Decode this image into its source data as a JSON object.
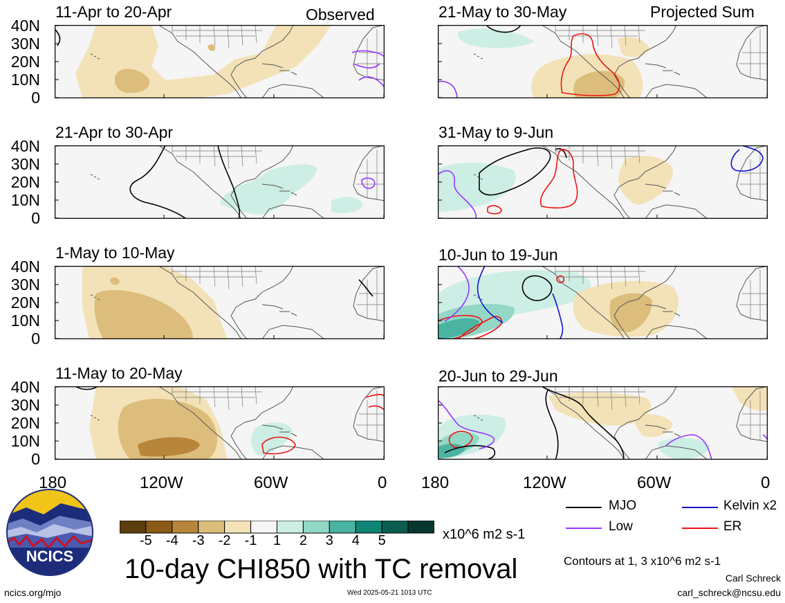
{
  "map_data": {
    "type": "multi-panel tropical map",
    "y_axis_ticks": [
      "40N",
      "30N",
      "20N",
      "10N",
      "0"
    ],
    "x_axis_ticks": [
      "180",
      "120W",
      "60W",
      "0"
    ],
    "columns": [
      {
        "label": "Observed",
        "panels": [
          {
            "title": "11-Apr to 20-Apr"
          },
          {
            "title": "21-Apr to 30-Apr"
          },
          {
            "title": "1-May to 10-May"
          },
          {
            "title": "11-May to 20-May"
          }
        ]
      },
      {
        "label": "Projected Sum",
        "panels": [
          {
            "title": "21-May to 30-May"
          },
          {
            "title": "31-May to 9-Jun"
          },
          {
            "title": "10-Jun to 19-Jun"
          },
          {
            "title": "20-Jun to 29-Jun"
          }
        ]
      }
    ]
  },
  "colorbar": {
    "labels": [
      "-5",
      "-4",
      "-3",
      "-2",
      "-1",
      "1",
      "2",
      "3",
      "4",
      "5"
    ],
    "colors": [
      "#5c3d0d",
      "#8a5a16",
      "#b8863a",
      "#dcbd7c",
      "#f3e2b8",
      "#f5f5f5",
      "#cdeee5",
      "#93d7c7",
      "#4bb3a1",
      "#108576",
      "#0a5d4f",
      "#06382f"
    ],
    "units": "x10^6 m2 s-1"
  },
  "legend": [
    {
      "label": "MJO",
      "color": "#000000"
    },
    {
      "label": "Kelvin x2",
      "color": "#1111cc"
    },
    {
      "label": "Low",
      "color": "#9933ff"
    },
    {
      "label": "ER",
      "color": "#ee1111"
    }
  ],
  "title": "10-day CHI850 with TC removal",
  "contour_note": "Contours at 1, 3 x10^6 m2 s-1",
  "logo_text": "NCICS",
  "author": "Carl Schreck",
  "email": "carl_schreck@ncsu.edu",
  "site": "ncics.org/mjo",
  "timestamp": "Wed 2025-05-21 1013 UTC",
  "colors": {
    "brown_light": "#f3e2b8",
    "brown_mid": "#dcbd7c",
    "brown_dark": "#b8863a",
    "green_light": "#cdeee5",
    "green_mid": "#93d7c7",
    "green_dark": "#4bb3a1"
  }
}
